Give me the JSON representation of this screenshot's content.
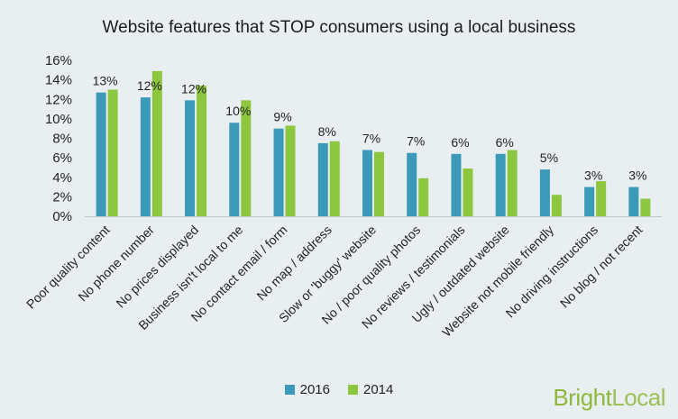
{
  "chart_data": {
    "type": "bar",
    "title": "Website features that STOP consumers using a local business",
    "categories": [
      "Poor quality content",
      "No phone number",
      "No prices displayed",
      "Business isn't local to me",
      "No contact email / form",
      "No map / address",
      "Slow or 'buggy' website",
      "No / poor quality photos",
      "No reviews / testimonials",
      "Ugly / outdated website",
      "Website not mobile friendly",
      "No driving instructions",
      "No blog / not recent"
    ],
    "series": [
      {
        "name": "2016",
        "color": "#3b9ab8",
        "values": [
          12.7,
          12.2,
          11.9,
          9.6,
          9.0,
          7.5,
          6.8,
          6.5,
          6.4,
          6.4,
          4.8,
          3.0,
          3.0
        ]
      },
      {
        "name": "2014",
        "color": "#8dc63f",
        "values": [
          13.0,
          14.9,
          13.4,
          11.9,
          9.3,
          7.7,
          6.6,
          3.9,
          4.9,
          6.8,
          2.2,
          3.6,
          1.8
        ]
      }
    ],
    "data_labels": [
      "13%",
      "12%",
      "12%",
      "10%",
      "9%",
      "8%",
      "7%",
      "7%",
      "6%",
      "6%",
      "5%",
      "3%",
      "3%"
    ],
    "yticks": [
      "0%",
      "2%",
      "4%",
      "6%",
      "8%",
      "10%",
      "12%",
      "14%",
      "16%"
    ],
    "ylim": [
      0,
      16
    ],
    "grid": false,
    "legend_position": "bottom"
  },
  "brand": {
    "part1": "Bright",
    "part2": "Local"
  }
}
